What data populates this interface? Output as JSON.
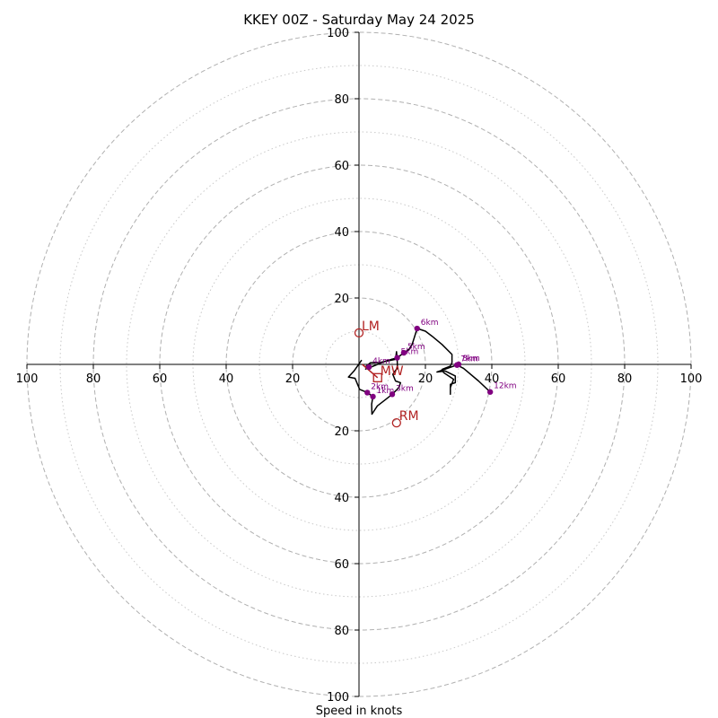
{
  "chart_data": {
    "type": "hodograph",
    "title": "KKEY 00Z - Saturday May 24 2025",
    "xlabel": "Speed in knots",
    "range": [
      -100,
      100
    ],
    "major_rings": [
      20,
      40,
      60,
      80,
      100
    ],
    "minor_rings": [
      10,
      30,
      50,
      70,
      90
    ],
    "x_tick_labels": [
      "100",
      "80",
      "60",
      "40",
      "20",
      "20",
      "40",
      "60",
      "80",
      "100"
    ],
    "x_tick_values": [
      -100,
      -80,
      -60,
      -40,
      -20,
      20,
      40,
      60,
      80,
      100
    ],
    "y_tick_labels": [
      "100",
      "80",
      "60",
      "40",
      "20",
      "20",
      "40",
      "60",
      "80",
      "100"
    ],
    "y_tick_values": [
      100,
      80,
      60,
      40,
      20,
      -20,
      -40,
      -60,
      -80,
      -100
    ],
    "grid": true,
    "colors": {
      "trace": "#000000",
      "height_markers": "#800080",
      "motion_markers": "#b22222",
      "grid": "#b0b0b0",
      "axes": "#000000"
    },
    "trace": [
      [
        0.8,
        1.3
      ],
      [
        -1.5,
        -2.0
      ],
      [
        -3.2,
        -3.8
      ],
      [
        -1.2,
        -4.2
      ],
      [
        0.2,
        -7.5
      ],
      [
        2.5,
        -8.5
      ],
      [
        4.2,
        -9.7
      ],
      [
        3.8,
        -12.0
      ],
      [
        3.9,
        -15.0
      ],
      [
        5.5,
        -12.5
      ],
      [
        8.0,
        -10.6
      ],
      [
        10.0,
        -9.0
      ],
      [
        12.0,
        -7.0
      ],
      [
        12.5,
        -5.5
      ],
      [
        11.0,
        -5.0
      ],
      [
        10.2,
        -3.0
      ],
      [
        11.0,
        -1.8
      ],
      [
        11.6,
        -1.2
      ],
      [
        11.5,
        1.0
      ],
      [
        11.3,
        3.8
      ],
      [
        11.0,
        1.5
      ],
      [
        6.0,
        0.5
      ],
      [
        3.5,
        0.5
      ],
      [
        2.2,
        -0.5
      ],
      [
        3.0,
        -0.8
      ],
      [
        2.0,
        -1.4
      ],
      [
        3.2,
        -1.0
      ],
      [
        8.0,
        1.0
      ],
      [
        11.5,
        2.0
      ],
      [
        13.5,
        3.5
      ],
      [
        15.0,
        4.5
      ],
      [
        16.0,
        6.0
      ],
      [
        17.5,
        10.8
      ],
      [
        20.0,
        10.0
      ],
      [
        22.0,
        8.5
      ],
      [
        25.0,
        6.0
      ],
      [
        28.0,
        3.0
      ],
      [
        28.0,
        0.5
      ],
      [
        27.5,
        -0.5
      ],
      [
        25.0,
        -1.5
      ],
      [
        25.5,
        -2.5
      ],
      [
        28.5,
        -4.5
      ],
      [
        27.5,
        -7.0
      ],
      [
        27.5,
        -9.0
      ],
      [
        27.5,
        -6.0
      ],
      [
        29.0,
        -5.5
      ],
      [
        29.0,
        -3.5
      ],
      [
        26.0,
        -2.0
      ],
      [
        23.5,
        -2.3
      ],
      [
        29.5,
        -0.2
      ],
      [
        31.5,
        -1.2
      ],
      [
        36.0,
        -5.0
      ],
      [
        39.5,
        -8.3
      ]
    ],
    "height_markers": [
      {
        "label": "1km",
        "u": 4.2,
        "v": -9.7
      },
      {
        "label": "2km",
        "u": 2.5,
        "v": -8.5
      },
      {
        "label": "3km",
        "u": 10.0,
        "v": -9.0
      },
      {
        "label": "4km",
        "u": 3.0,
        "v": -0.8
      },
      {
        "label": "5km",
        "u": 11.5,
        "v": 2.0
      },
      {
        "label": "5km",
        "u": 13.5,
        "v": 3.5
      },
      {
        "label": "6km",
        "u": 17.5,
        "v": 10.8
      },
      {
        "label": "7km",
        "u": 29.5,
        "v": -0.2
      },
      {
        "label": "8km",
        "u": 30.0,
        "v": 0.0
      },
      {
        "label": "12km",
        "u": 39.5,
        "v": -8.3
      }
    ],
    "storm_motions": [
      {
        "label": "LM",
        "u": 0.0,
        "v": 9.5,
        "shape": "circle"
      },
      {
        "label": "RM",
        "u": 11.3,
        "v": -17.6,
        "shape": "circle"
      },
      {
        "label": "MW",
        "u": 5.6,
        "v": -4.0,
        "shape": "square"
      }
    ],
    "mean_wind_vector": {
      "from": [
        1.0,
        0.0
      ],
      "to": [
        5.6,
        -4.0
      ]
    }
  }
}
